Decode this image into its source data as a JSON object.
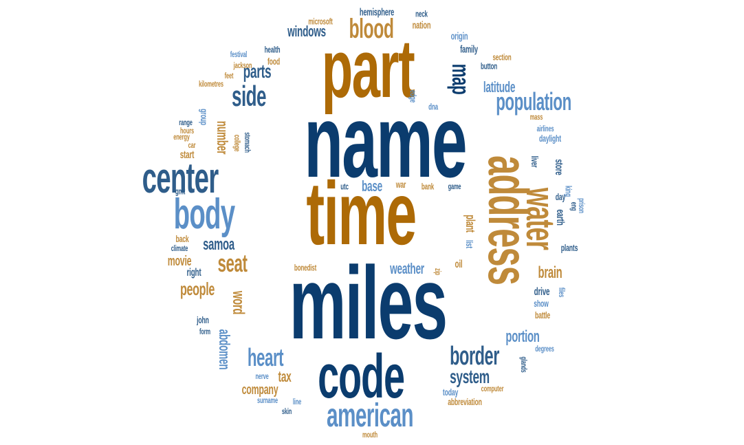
{
  "palette": {
    "navy": "#0b3c6e",
    "steel": "#2f5d8a",
    "sky": "#5b8fc7",
    "bronze": "#ad6a06",
    "tan": "#bf8a3a"
  },
  "words": [
    "name",
    "time",
    "miles",
    "part",
    "address",
    "code",
    "center",
    "body",
    "american",
    "blood",
    "population",
    "water",
    "side",
    "border",
    "heart",
    "seat",
    "map",
    "system",
    "portion",
    "parts",
    "latitude",
    "windows",
    "samoa",
    "people",
    "brain",
    "word",
    "number",
    "weather",
    "tax",
    "company",
    "movie",
    "abdomen",
    "base",
    "hemisphere",
    "nation",
    "family",
    "origin",
    "microsoft",
    "neck",
    "section",
    "festival",
    "health",
    "food",
    "jackson",
    "button",
    "feet",
    "kilometres",
    "edge",
    "dna",
    "group",
    "range",
    "hours",
    "energy",
    "car",
    "college",
    "stomach",
    "start",
    "mass",
    "airlines",
    "daylight",
    "liver",
    "store",
    "utc",
    "war",
    "bank",
    "game",
    "king",
    "day",
    "eng",
    "prison",
    "gmt",
    "plant",
    "earth",
    "plants",
    "back",
    "climate",
    "list",
    "oil",
    "right",
    "bonedist",
    "zip",
    "files",
    "drive",
    "show",
    "battle",
    "john",
    "form",
    "today",
    "computer",
    "abbreviation",
    "nerve",
    "surname",
    "line",
    "skin",
    "glands",
    "degrees",
    "mouth"
  ]
}
